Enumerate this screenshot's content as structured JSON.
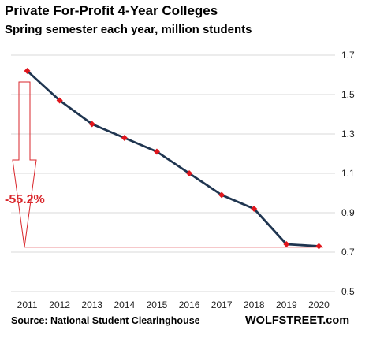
{
  "chart_data": {
    "type": "line",
    "title": "Private For-Profit 4-Year Colleges",
    "subtitle": "Spring semester each year, million students",
    "categories": [
      "2011",
      "2012",
      "2013",
      "2014",
      "2015",
      "2016",
      "2017",
      "2018",
      "2019",
      "2020"
    ],
    "series": [
      {
        "values": [
          1.62,
          1.47,
          1.35,
          1.28,
          1.21,
          1.1,
          0.99,
          0.92,
          0.74,
          0.73
        ]
      }
    ],
    "ylim": [
      0.5,
      1.7
    ],
    "yticks": [
      "1.7",
      "1.5",
      "1.3",
      "1.1",
      "0.9",
      "0.7",
      "0.5"
    ],
    "ytick_values": [
      1.7,
      1.5,
      1.3,
      1.1,
      0.9,
      0.7,
      0.5
    ],
    "grid": true,
    "annotation": {
      "text": "-55.2%",
      "from_value": 1.62,
      "to_value": 0.725
    },
    "source": "Source: National Student Clearinghouse",
    "brand": "WOLFSTREET.com",
    "colors": {
      "line": "#1f3550",
      "marker": "#e0151c",
      "arrow": "#d9262b",
      "grid": "#d9d9d9"
    }
  }
}
